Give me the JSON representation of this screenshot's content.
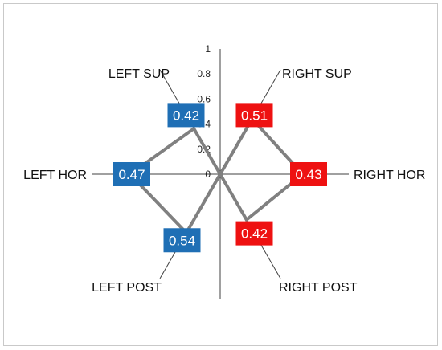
{
  "chart_data": {
    "type": "radial-butterfly",
    "axis": {
      "ticks": [
        "0",
        "0.2",
        "0.4",
        "0.6",
        "0.8",
        "1"
      ],
      "min": 0,
      "max": 1
    },
    "left_color": "#1f6fb5",
    "right_color": "#ee1111",
    "line_color": "#808080",
    "points": [
      {
        "label": "LEFT SUP",
        "value": 0.42,
        "display": "0.42",
        "side": "left",
        "direction": "up-left"
      },
      {
        "label": "LEFT HOR",
        "value": 0.47,
        "display": "0.47",
        "side": "left",
        "direction": "left"
      },
      {
        "label": "LEFT POST",
        "value": 0.54,
        "display": "0.54",
        "side": "left",
        "direction": "down-left"
      },
      {
        "label": "RIGHT SUP",
        "value": 0.51,
        "display": "0.51",
        "side": "right",
        "direction": "up-right"
      },
      {
        "label": "RIGHT HOR",
        "value": 0.43,
        "display": "0.43",
        "side": "right",
        "direction": "right"
      },
      {
        "label": "RIGHT POST",
        "value": 0.42,
        "display": "0.42",
        "side": "right",
        "direction": "down-right"
      }
    ]
  }
}
